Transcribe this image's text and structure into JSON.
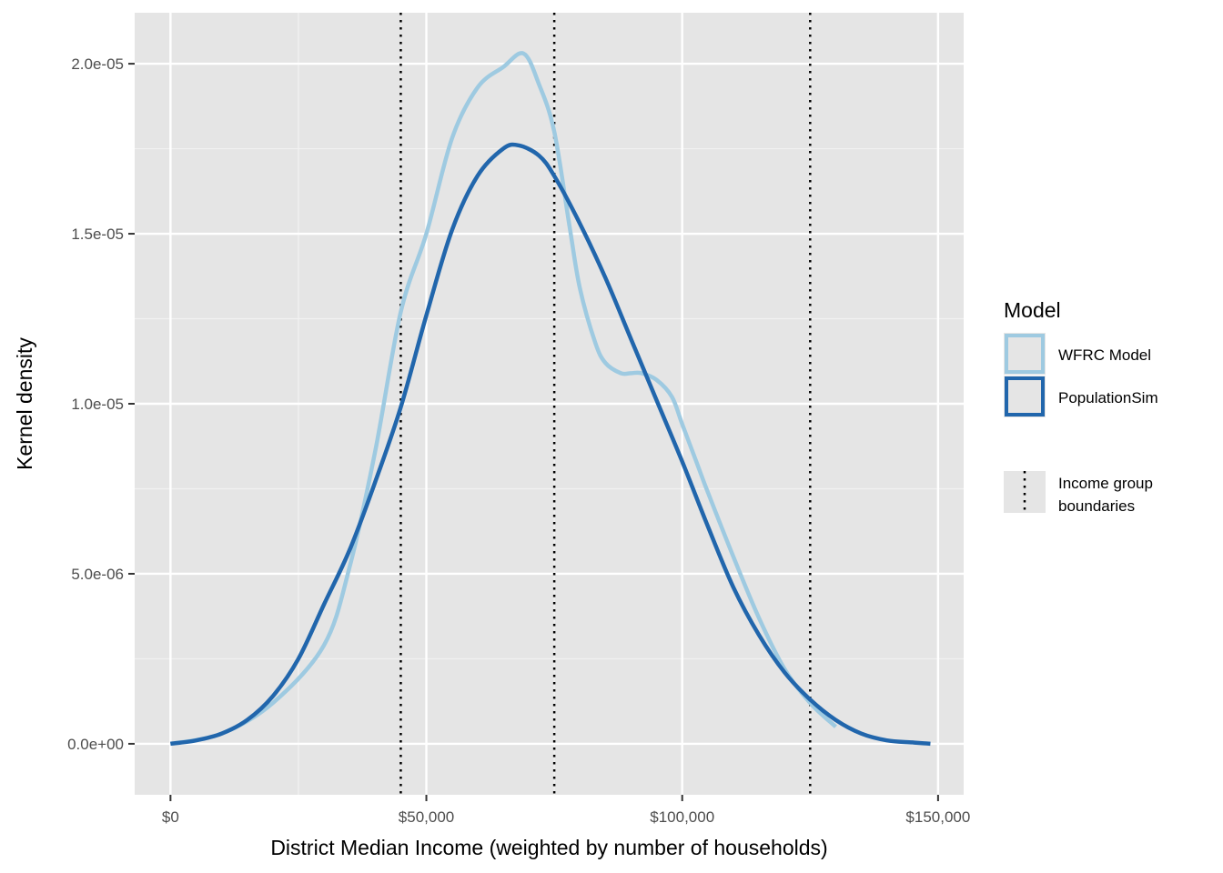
{
  "chart_data": {
    "type": "line",
    "title": "",
    "xlabel": "District Median Income (weighted by number of households)",
    "ylabel": "Kernel density",
    "xlim": [
      -7000,
      155000
    ],
    "ylim": [
      -1.5e-06,
      2.15e-05
    ],
    "x_ticks": [
      0,
      50000,
      100000,
      150000
    ],
    "x_tick_labels": [
      "$0",
      "$50,000",
      "$100,000",
      "$150,000"
    ],
    "y_ticks": [
      0,
      5e-06,
      1e-05,
      1.5e-05,
      2e-05
    ],
    "y_tick_labels": [
      "0.0e+00",
      "5.0e-06",
      "1.0e-05",
      "1.5e-05",
      "2.0e-05"
    ],
    "grid": true,
    "background": "#e5e5e5",
    "legend_position": "right",
    "legend_title": "Model",
    "series": [
      {
        "name": "WFRC Model",
        "color": "#9ecae1",
        "x": [
          0,
          10000,
          20000,
          30000,
          35000,
          40000,
          45000,
          50000,
          55000,
          60000,
          65000,
          69000,
          72000,
          75000,
          78000,
          80000,
          83000,
          85000,
          88000,
          90000,
          92000,
          95000,
          98000,
          100000,
          103000,
          105000,
          110000,
          115000,
          120000,
          125000,
          130000
        ],
        "y": [
          0,
          3e-07,
          1.2e-06,
          2.9e-06,
          5.2e-06,
          8.6e-06,
          1.27e-05,
          1.5e-05,
          1.78e-05,
          1.93e-05,
          1.99e-05,
          2.03e-05,
          1.94e-05,
          1.8e-05,
          1.52e-05,
          1.34e-05,
          1.18e-05,
          1.12e-05,
          1.09e-05,
          1.09e-05,
          1.09e-05,
          1.07e-05,
          1.02e-05,
          9.4e-06,
          8.2e-06,
          7.4e-06,
          5.5e-06,
          3.7e-06,
          2.2e-06,
          1.2e-06,
          5e-07
        ]
      },
      {
        "name": "PopulationSim",
        "color": "#2166ac",
        "x": [
          0,
          5000,
          10000,
          15000,
          20000,
          25000,
          30000,
          35000,
          40000,
          45000,
          50000,
          55000,
          60000,
          65000,
          68000,
          72000,
          75000,
          80000,
          85000,
          90000,
          95000,
          100000,
          105000,
          110000,
          115000,
          120000,
          125000,
          130000,
          135000,
          140000,
          145000,
          148500
        ],
        "y": [
          0,
          1e-07,
          3e-07,
          7e-07,
          1.4e-06,
          2.5e-06,
          4.1e-06,
          5.7e-06,
          7.7e-06,
          9.9e-06,
          1.26e-05,
          1.51e-05,
          1.67e-05,
          1.75e-05,
          1.76e-05,
          1.73e-05,
          1.67e-05,
          1.53e-05,
          1.37e-05,
          1.19e-05,
          1.01e-05,
          8.3e-06,
          6.4e-06,
          4.6e-06,
          3.2e-06,
          2.1e-06,
          1.3e-06,
          7e-07,
          3e-07,
          1e-07,
          4e-08,
          0
        ]
      }
    ],
    "reference_lines": {
      "name": "Income group boundaries",
      "legend_label_lines": [
        "Income group",
        "boundaries"
      ],
      "style": "dotted",
      "color": "#000000",
      "x": [
        45000,
        75000,
        125000
      ]
    }
  }
}
